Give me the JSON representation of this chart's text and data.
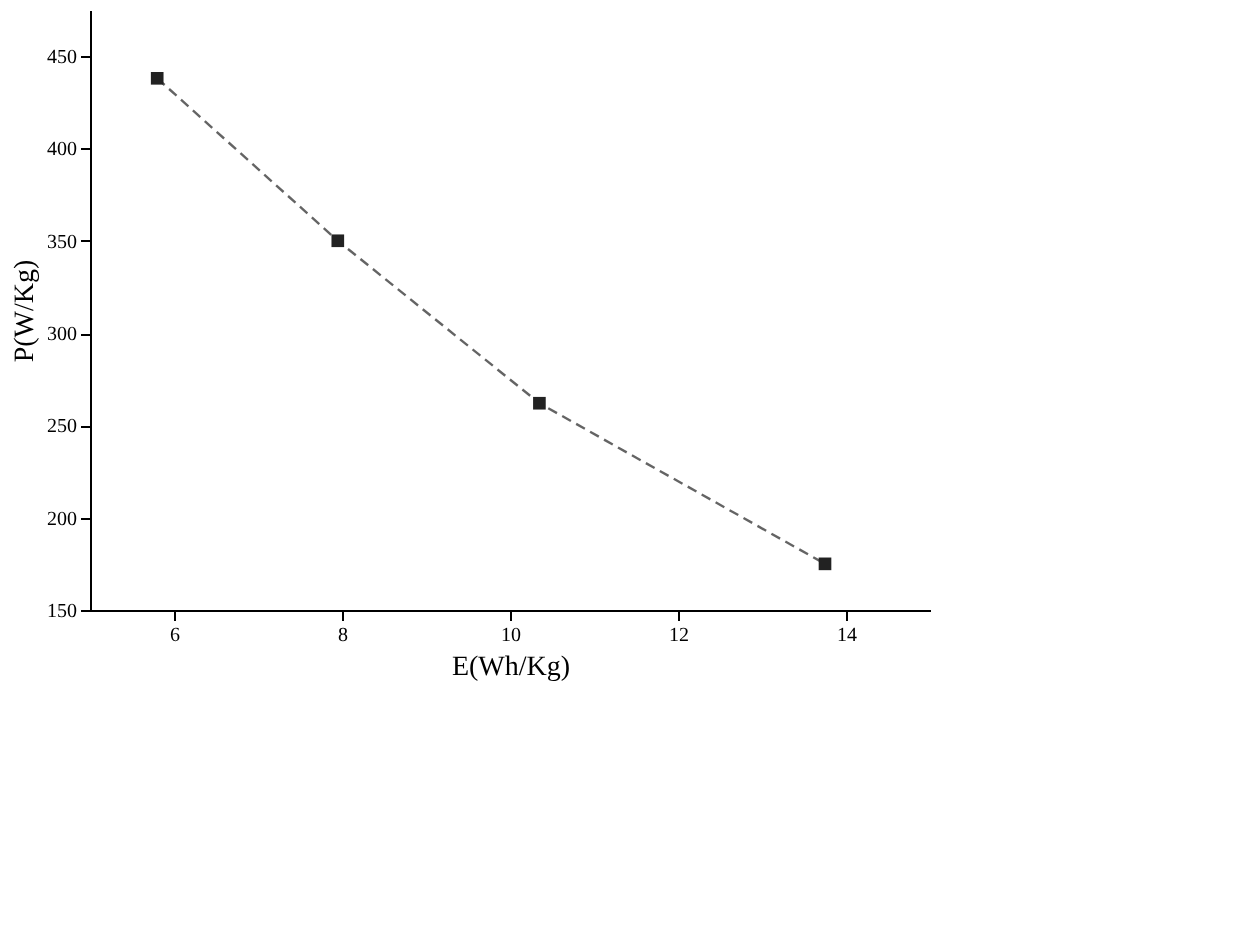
{
  "chart_data": {
    "type": "line",
    "xlabel": "E(Wh/Kg)",
    "ylabel": "P(W/Kg)",
    "x": [
      5.8,
      7.95,
      10.35,
      13.75
    ],
    "series": [
      {
        "color": "#222222",
        "values": [
          438,
          350,
          262,
          175
        ]
      }
    ],
    "xlim": [
      5,
      15
    ],
    "xticks": [
      6,
      8,
      10,
      12,
      14
    ],
    "ylim": [
      150,
      475
    ],
    "yticks": [
      150,
      200,
      250,
      300,
      350,
      400,
      450
    ],
    "marker": "square",
    "line_style": "dashed",
    "grid": false
  }
}
